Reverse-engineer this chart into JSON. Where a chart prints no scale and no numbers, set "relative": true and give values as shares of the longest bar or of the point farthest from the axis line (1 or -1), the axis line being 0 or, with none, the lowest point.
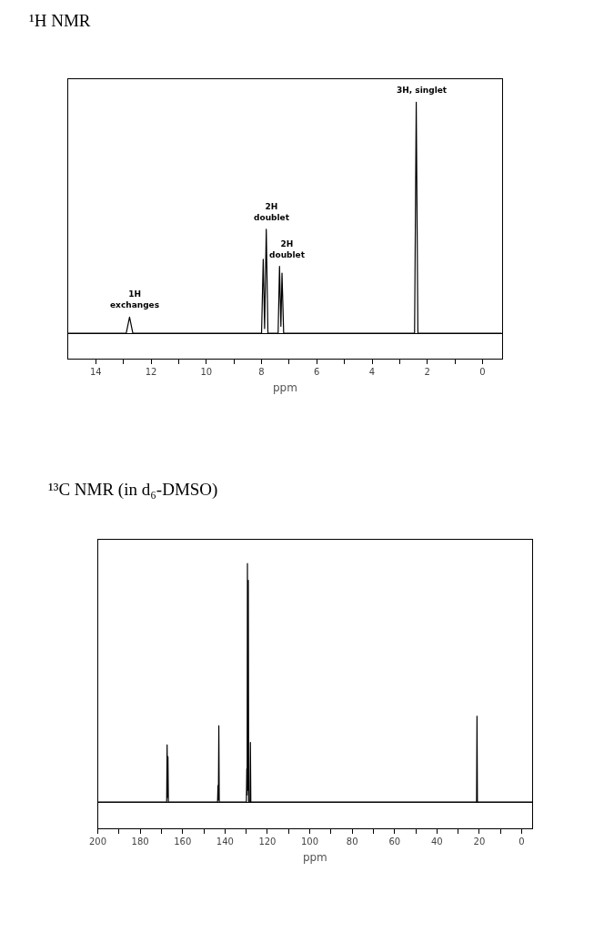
{
  "chart_data": [
    {
      "type": "line",
      "title": "¹H NMR",
      "xlabel": "ppm",
      "relative": true,
      "color": "#000000",
      "xlim": [
        15,
        -0.7
      ],
      "xticks": [
        14,
        12,
        10,
        8,
        6,
        4,
        2,
        0
      ],
      "x": [
        15,
        12.9,
        12.78,
        12.66,
        8.0,
        7.94,
        7.89,
        7.83,
        7.77,
        7.4,
        7.35,
        7.3,
        7.26,
        7.2,
        2.46,
        2.4,
        2.34,
        -0.7
      ],
      "values": [
        0,
        0,
        0.07,
        0,
        0,
        0.32,
        0.02,
        0.45,
        0,
        0,
        0.29,
        0.03,
        0.26,
        0,
        0,
        1.0,
        0,
        0
      ],
      "annotations": [
        {
          "text": "1H\nexchanges",
          "x": 12.78,
          "y": 0.07
        },
        {
          "text": "2H\ndoublet",
          "x": 7.83,
          "y": 0.45
        },
        {
          "text": "2H\ndoublet",
          "x": 7.26,
          "y": 0.29
        },
        {
          "text": "3H, singlet",
          "x": 2.4,
          "y": 1.0
        }
      ]
    },
    {
      "type": "line",
      "title": "¹³C NMR (in d₆-DMSO)",
      "xlabel": "ppm",
      "relative": true,
      "color": "#000000",
      "xlim": [
        200,
        -5
      ],
      "xticks": [
        200,
        180,
        160,
        140,
        120,
        100,
        80,
        60,
        40,
        20,
        0
      ],
      "x": [
        200,
        167.5,
        167.3,
        167.1,
        166.9,
        166.7,
        143.5,
        143.3,
        143.1,
        142.9,
        142.7,
        129.9,
        129.7,
        129.55,
        129.4,
        129.2,
        129.0,
        128.8,
        128.2,
        128.0,
        127.8,
        21.3,
        21.1,
        20.9,
        -5
      ],
      "values": [
        0,
        0,
        0.24,
        0.02,
        0.19,
        0,
        0,
        0.07,
        0.01,
        0.32,
        0,
        0,
        0.14,
        0.03,
        1.0,
        0.05,
        0.93,
        0,
        0,
        0.25,
        0,
        0,
        0.36,
        0,
        0
      ]
    }
  ]
}
